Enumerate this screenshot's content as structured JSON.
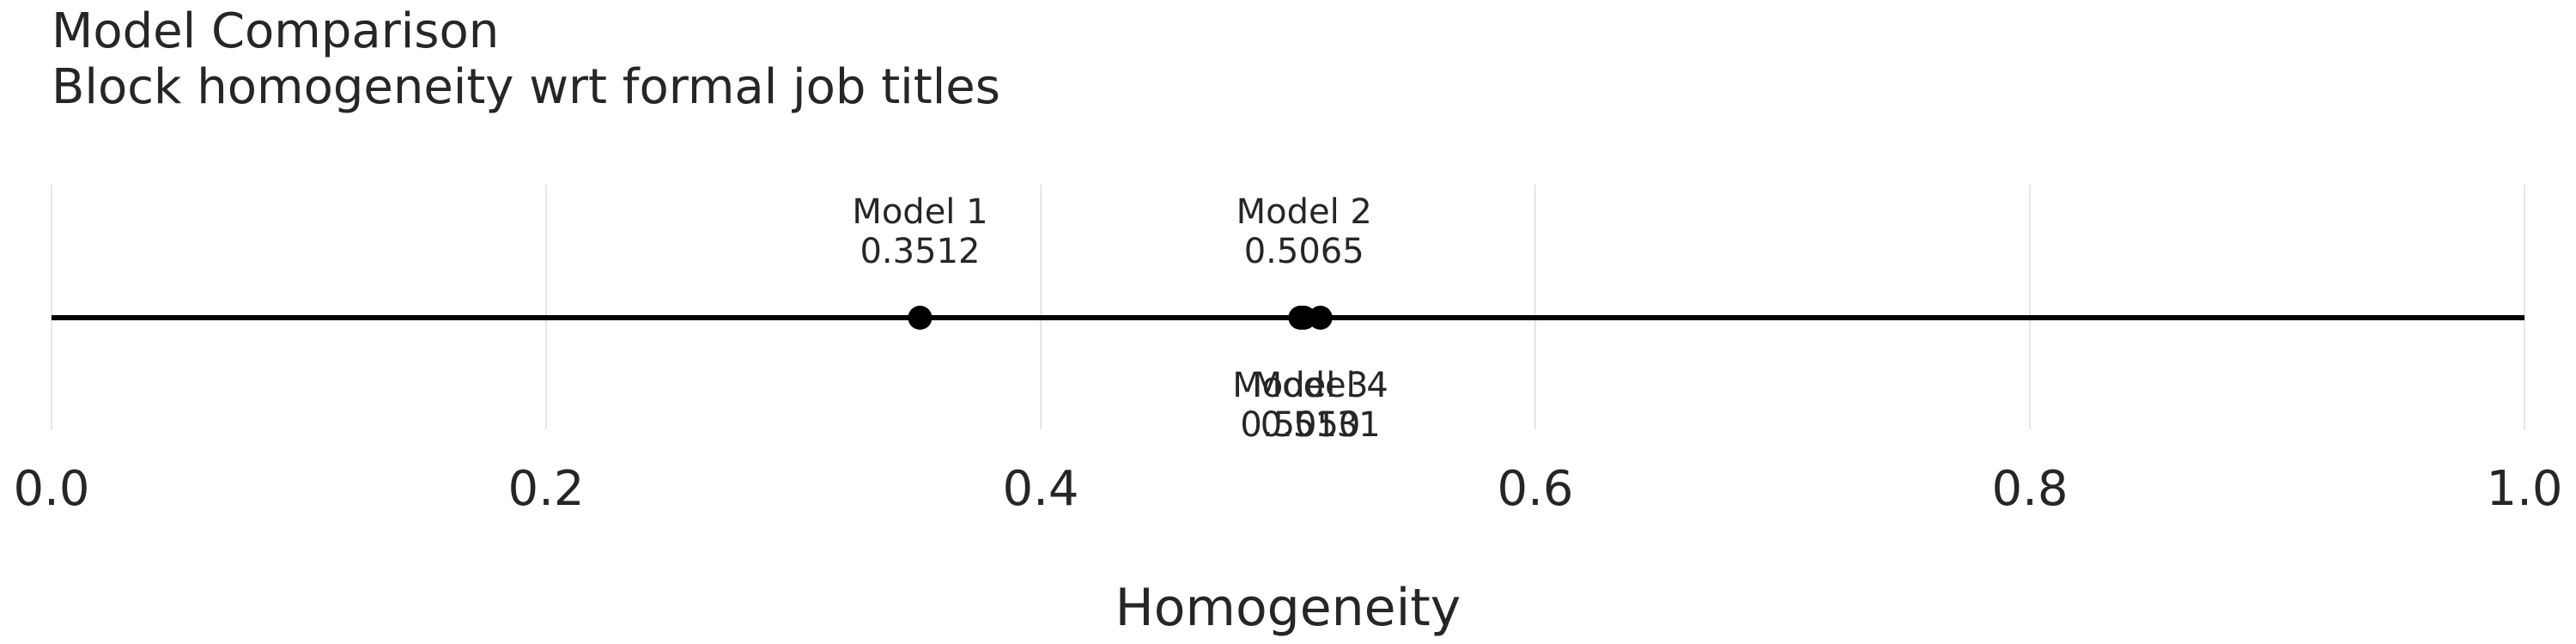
{
  "chart_data": {
    "type": "scatter",
    "title": "Model Comparison",
    "subtitle": "Block homogeneity wrt formal job titles",
    "xlabel": "Homogeneity",
    "ylabel": "",
    "xlim": [
      0.0,
      1.0
    ],
    "ticks": [
      "0.0",
      "0.2",
      "0.4",
      "0.6",
      "0.8",
      "1.0"
    ],
    "tick_values": [
      0.0,
      0.2,
      0.4,
      0.6,
      0.8,
      1.0
    ],
    "grid": true,
    "points": [
      {
        "name": "Model 1",
        "value": 0.3512,
        "value_label": "0.3512",
        "label_position": "above"
      },
      {
        "name": "Model 2",
        "value": 0.5065,
        "value_label": "0.5065",
        "label_position": "above"
      },
      {
        "name": "Model 3",
        "value": 0.505,
        "value_label": "0.5050",
        "label_position": "below"
      },
      {
        "name": "Model 4",
        "value": 0.5131,
        "value_label": "0.5131",
        "label_position": "below"
      }
    ]
  }
}
